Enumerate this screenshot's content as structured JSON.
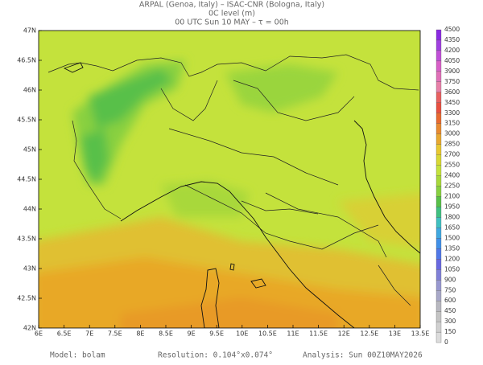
{
  "header": {
    "line1": "ARPAL (Genoa, Italy)   –   ISAC-CNR (Bologna, Italy)",
    "line2": "0C level (m)",
    "line3": "00 UTC Sun 10 MAY  –  τ = 00h"
  },
  "footer": {
    "model": "Model: bolam",
    "resolution": "Resolution: 0.104°x0.074°",
    "analysis": "Analysis: Sun 00Z10MAY2026"
  },
  "lon_labels": [
    "6E",
    "6.5E",
    "7E",
    "7.5E",
    "8E",
    "8.5E",
    "9E",
    "9.5E",
    "10E",
    "10.5E",
    "11E",
    "11.5E",
    "12E",
    "12.5E",
    "13E",
    "13.5E"
  ],
  "lat_labels": [
    "47N",
    "46.5N",
    "46N",
    "45.5N",
    "45N",
    "44.5N",
    "44N",
    "43.5N",
    "43N",
    "42.5N",
    "42N"
  ],
  "colorbar_levels": [
    4500,
    4350,
    4200,
    4050,
    3900,
    3750,
    3600,
    3450,
    3300,
    3150,
    3000,
    2850,
    2700,
    2550,
    2400,
    2250,
    2100,
    1950,
    1800,
    1650,
    1500,
    1350,
    1200,
    1050,
    900,
    750,
    600,
    450,
    300,
    150,
    0
  ]
}
